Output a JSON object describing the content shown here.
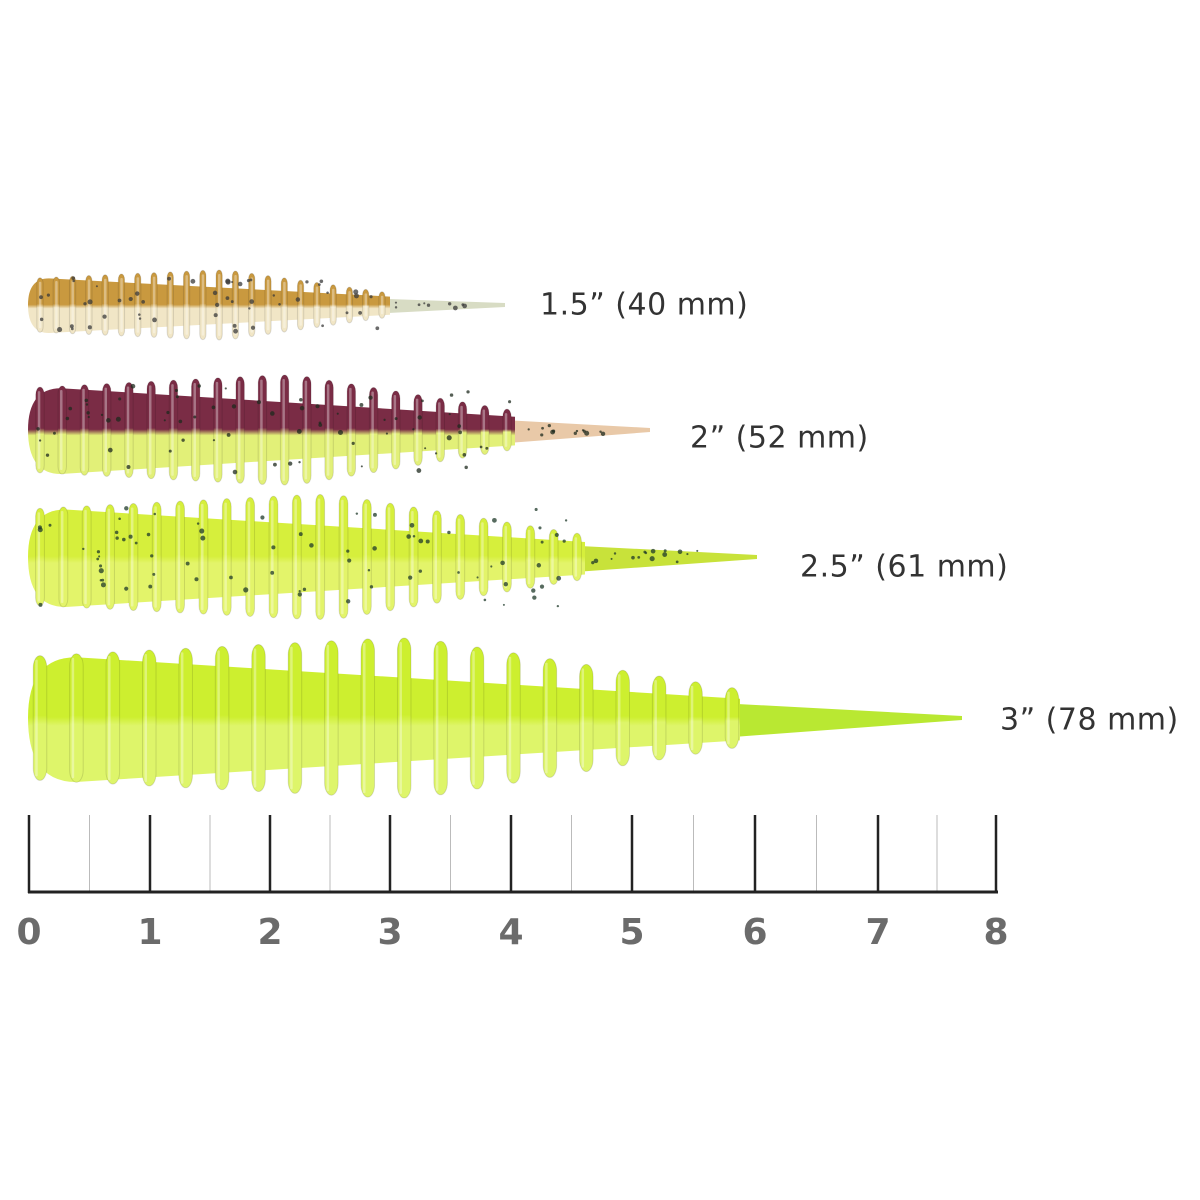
{
  "lures": [
    {
      "label": "1.5” (40 mm)",
      "top_color": "#c9993f",
      "bottom_color": "#f1e6c6",
      "tail_color": "#d8dcc4",
      "speckle_color": "#3a3a3a"
    },
    {
      "label": "2” (52 mm)",
      "top_color": "#7a2c45",
      "bottom_color": "#e2f078",
      "tail_color": "#e9c9a8",
      "speckle_color": "#1e2a1e"
    },
    {
      "label": "2.5” (61 mm)",
      "top_color": "#d6ef3c",
      "bottom_color": "#e3f46a",
      "tail_color": "#c8e23a",
      "speckle_color": "#1f3a2a"
    },
    {
      "label": "3” (78 mm)",
      "top_color": "#cdef2f",
      "bottom_color": "#def56a",
      "tail_color": "#b9e832",
      "speckle_color": null
    }
  ],
  "ruler": {
    "unit_labels": [
      "0",
      "1",
      "2",
      "3",
      "4",
      "5",
      "6",
      "7",
      "8"
    ],
    "major_tick_color": "#222222",
    "minor_tick_color": "#bbbbbb",
    "label_color": "#6b6b6b"
  }
}
